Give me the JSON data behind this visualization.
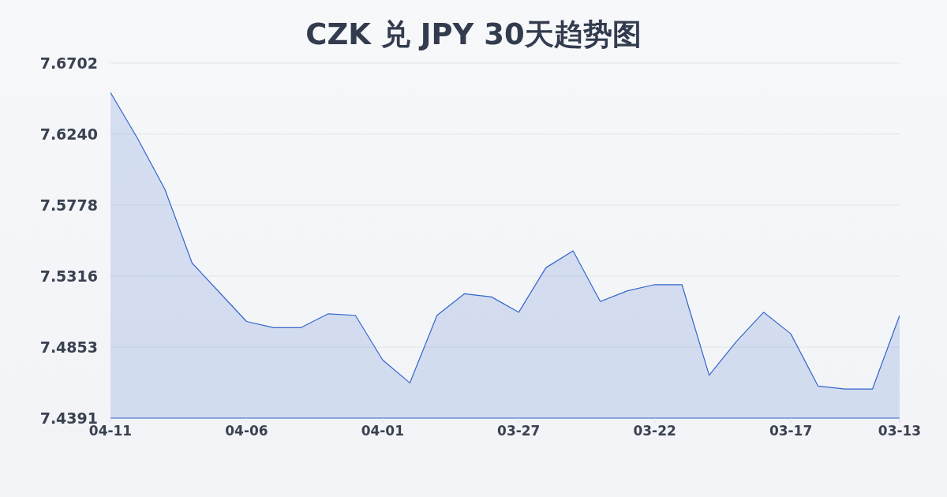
{
  "chart_data": {
    "type": "area",
    "title": "CZK 兑 JPY 30天趋势图",
    "categories": [
      "04-11",
      null,
      null,
      null,
      null,
      "04-06",
      null,
      null,
      null,
      null,
      "04-01",
      null,
      null,
      null,
      null,
      "03-27",
      null,
      null,
      null,
      null,
      "03-22",
      null,
      null,
      null,
      null,
      "03-17",
      null,
      null,
      null,
      "03-13"
    ],
    "series": [
      {
        "color": "#3366cc",
        "values": [
          7.651,
          7.621,
          7.588,
          7.54,
          7.521,
          7.502,
          7.498,
          7.498,
          7.507,
          7.506,
          7.477,
          7.462,
          7.506,
          7.52,
          7.518,
          7.508,
          7.537,
          7.548,
          7.515,
          7.522,
          7.526,
          7.526,
          7.467,
          7.489,
          7.508,
          7.494,
          7.46,
          7.458,
          7.458,
          7.506
        ]
      }
    ],
    "ylim": [
      7.4391,
      7.6702
    ],
    "yticks": [
      7.4391,
      7.4853,
      7.5316,
      7.5778,
      {
        "value": 7.624,
        "label": "7.6240"
      },
      7.6702
    ],
    "grid": "y",
    "marker": "none",
    "line_style": "solid"
  }
}
